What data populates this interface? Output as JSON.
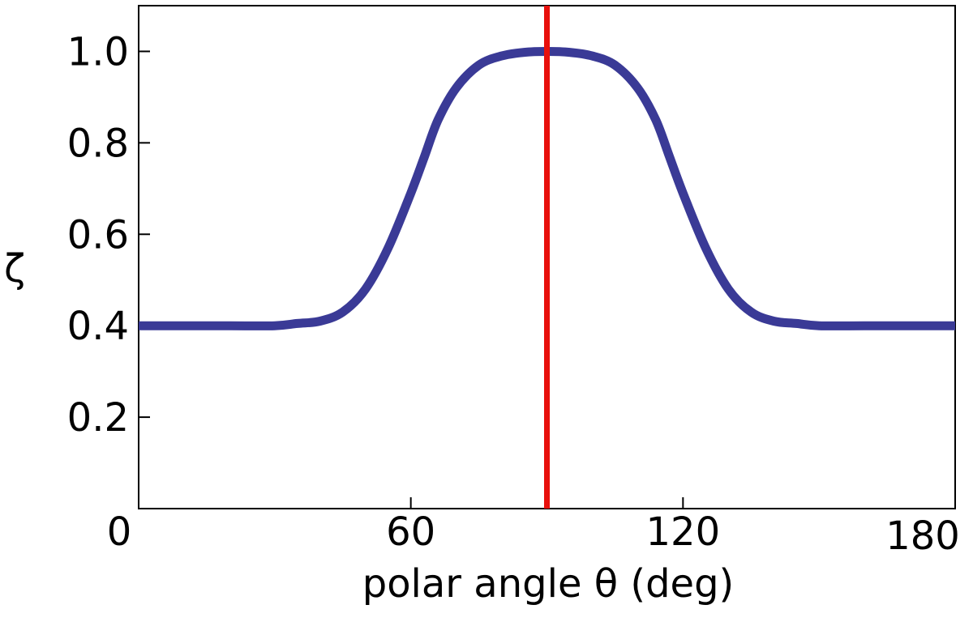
{
  "chart_data": {
    "type": "line",
    "title": "",
    "xlabel": "polar angle θ  (deg)",
    "ylabel": "ζ",
    "xlim": [
      0,
      180
    ],
    "ylim": [
      0,
      1.1
    ],
    "grid": false,
    "x_ticks": [
      {
        "value": 0,
        "label": "0"
      },
      {
        "value": 60,
        "label": "60"
      },
      {
        "value": 120,
        "label": "120"
      },
      {
        "value": 180,
        "label": "180"
      }
    ],
    "y_ticks": [
      {
        "value": 0.2,
        "label": "0.2"
      },
      {
        "value": 0.4,
        "label": "0.4"
      },
      {
        "value": 0.6,
        "label": "0.6"
      },
      {
        "value": 0.8,
        "label": "0.8"
      },
      {
        "value": 1.0,
        "label": "1.0"
      }
    ],
    "series": [
      {
        "color": "#3a3a96",
        "x": [
          0,
          20,
          30,
          35,
          40,
          45,
          50,
          55,
          60,
          63,
          66,
          70,
          75,
          80,
          85,
          90,
          95,
          100,
          105,
          110,
          114,
          117,
          120,
          125,
          130,
          135,
          140,
          145,
          150,
          160,
          180
        ],
        "y": [
          0.4,
          0.4,
          0.4,
          0.405,
          0.41,
          0.43,
          0.48,
          0.57,
          0.69,
          0.77,
          0.85,
          0.92,
          0.97,
          0.99,
          0.998,
          1.0,
          0.998,
          0.99,
          0.97,
          0.92,
          0.85,
          0.77,
          0.69,
          0.57,
          0.48,
          0.43,
          0.41,
          0.405,
          0.4,
          0.4,
          0.4
        ]
      }
    ],
    "vlines": [
      {
        "x": 90,
        "color": "#e8100c"
      }
    ]
  }
}
